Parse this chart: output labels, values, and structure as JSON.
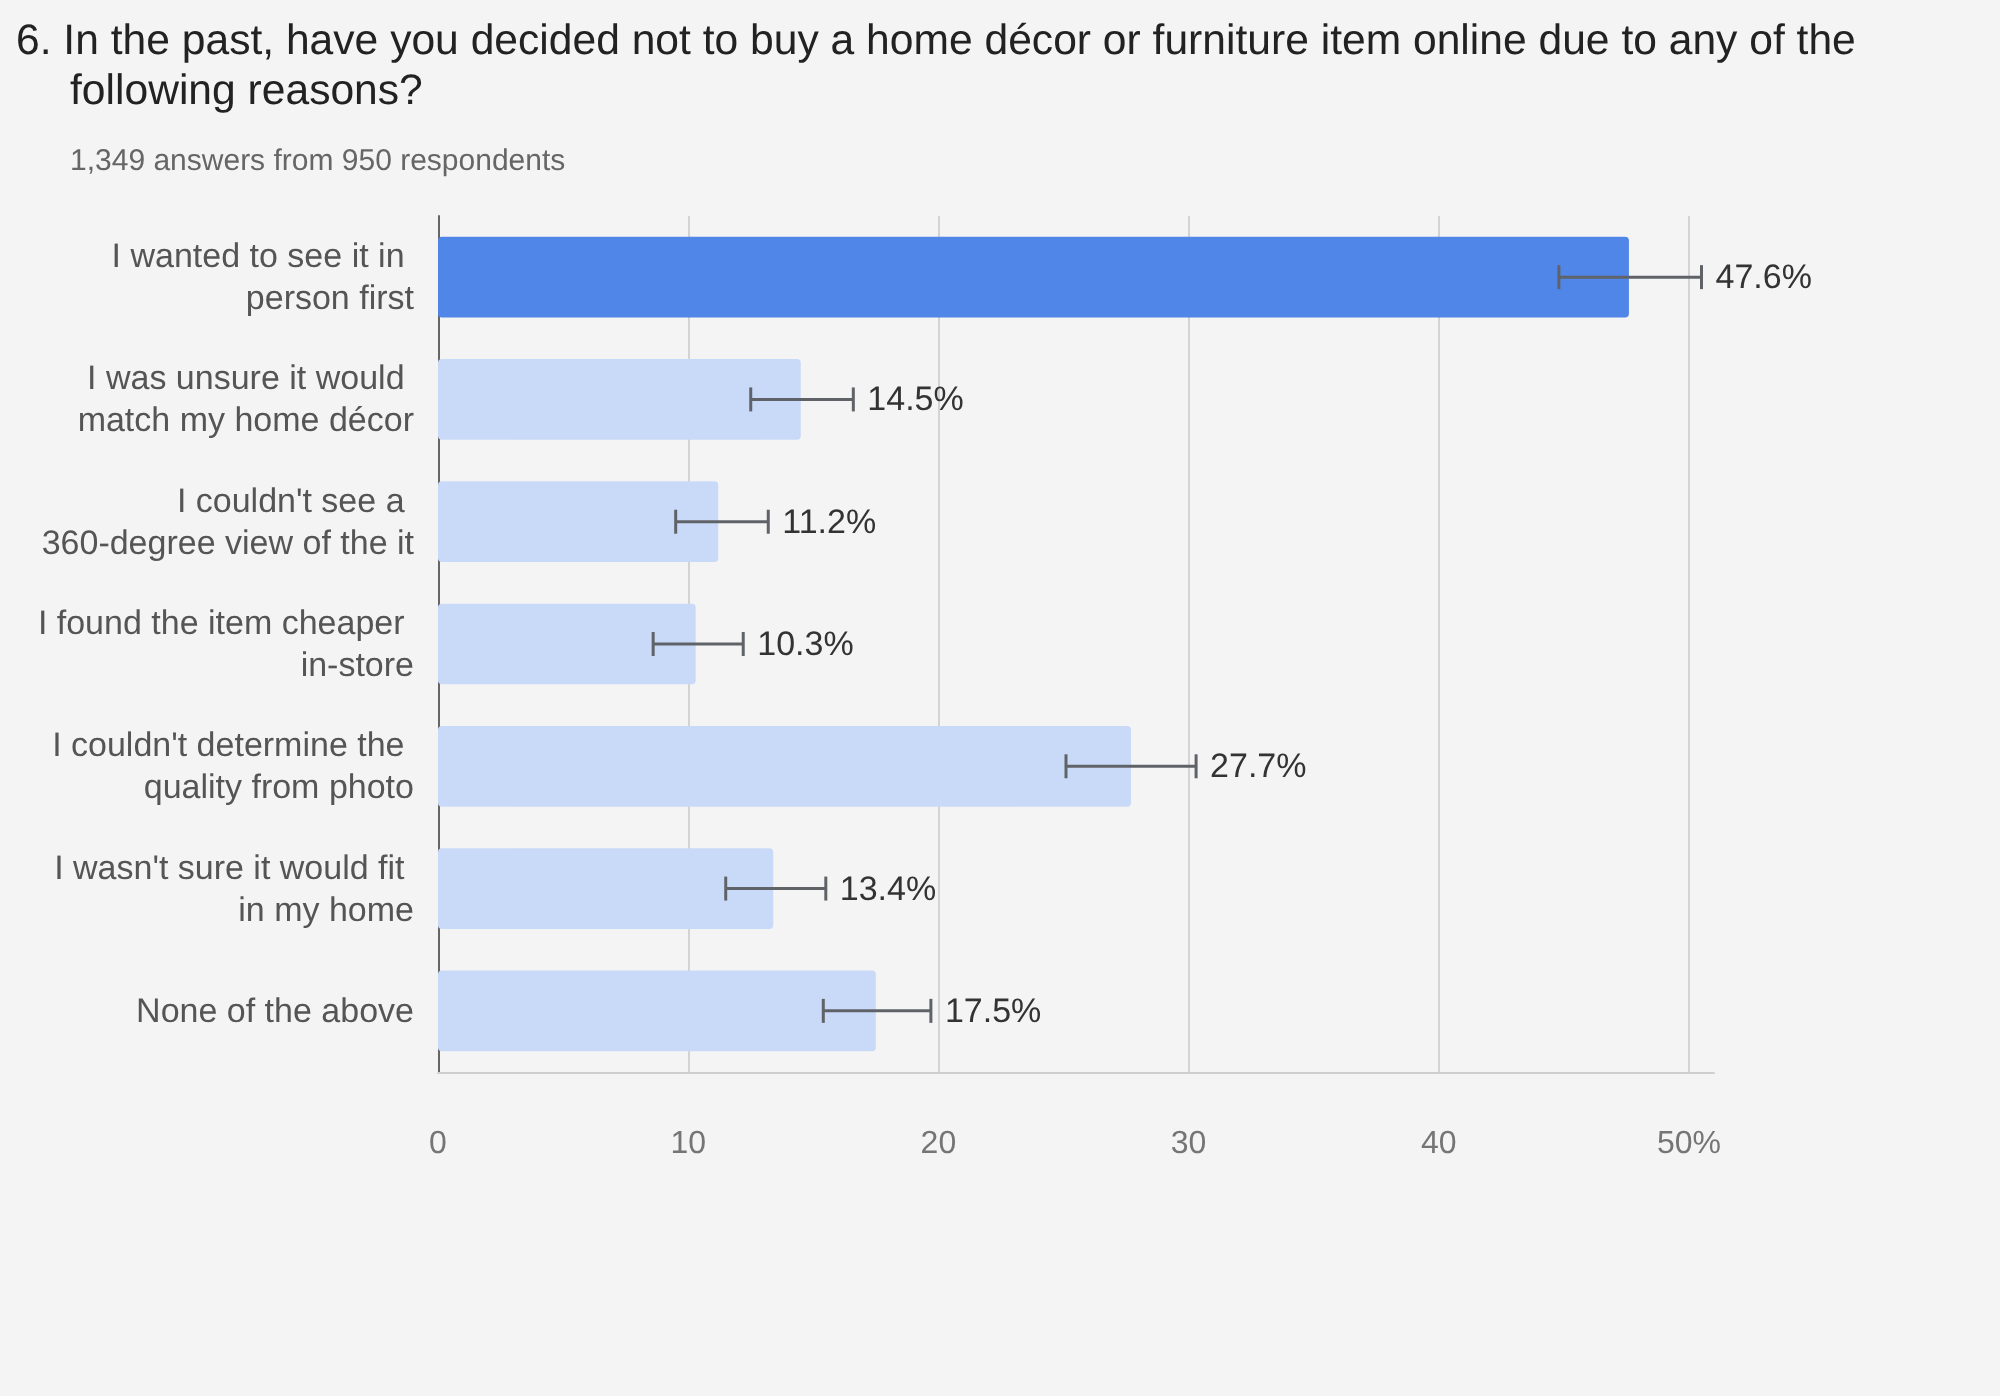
{
  "chart_data": {
    "type": "bar",
    "orientation": "horizontal",
    "title": "6. In the past, have you decided not to buy a home décor or furniture item online due to any of the following reasons?",
    "subtitle": "1,349 answers from 950 respondents",
    "categories": [
      "I wanted to see it in person first",
      "I was unsure it would match my home décor",
      "I couldn't see a 360-degree view of the it",
      "I found the item cheaper in-store",
      "I couldn't determine the quality from photo",
      "I wasn't sure it would fit in my home",
      "None of the above"
    ],
    "values": [
      47.6,
      14.5,
      11.2,
      10.3,
      27.7,
      13.4,
      17.5
    ],
    "colors": [
      "#4f86e8",
      "#c9daf8",
      "#c9daf8",
      "#c9daf8",
      "#c9daf8",
      "#c9daf8",
      "#c9daf8"
    ],
    "errors": [
      [
        44.8,
        50.5
      ],
      [
        12.5,
        16.6
      ],
      [
        9.5,
        13.2
      ],
      [
        8.6,
        12.2
      ],
      [
        25.1,
        30.3
      ],
      [
        11.5,
        15.5
      ],
      [
        15.4,
        19.7
      ]
    ],
    "value_labels": [
      "47.6%",
      "14.5%",
      "11.2%",
      "10.3%",
      "27.7%",
      "13.4%",
      "17.5%"
    ],
    "xlim": [
      0,
      51
    ],
    "xticks": [
      0,
      10,
      20,
      30,
      40,
      {
        "value": 50,
        "label": "50%"
      }
    ],
    "grid": "x"
  }
}
